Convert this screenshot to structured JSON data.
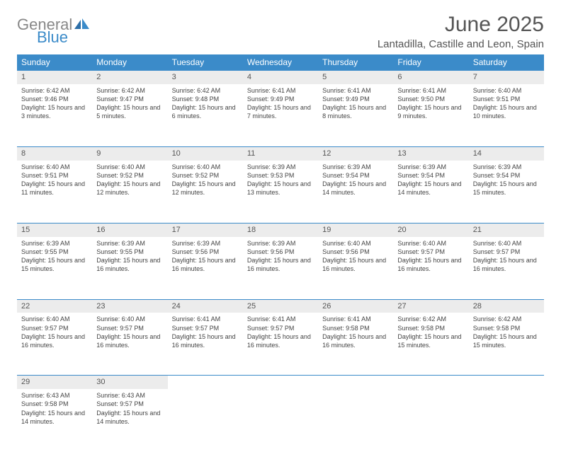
{
  "logo": {
    "textGray": "General",
    "textBlue": "Blue"
  },
  "header": {
    "monthTitle": "June 2025",
    "location": "Lantadilla, Castille and Leon, Spain"
  },
  "colors": {
    "headerBar": "#3b8bc9",
    "dayStrip": "#ececec",
    "textGray": "#888888",
    "textBlue": "#3b8bc9"
  },
  "weekdays": [
    "Sunday",
    "Monday",
    "Tuesday",
    "Wednesday",
    "Thursday",
    "Friday",
    "Saturday"
  ],
  "days": [
    {
      "n": 1,
      "sr": "6:42 AM",
      "ss": "9:46 PM",
      "dl": "15 hours and 3 minutes."
    },
    {
      "n": 2,
      "sr": "6:42 AM",
      "ss": "9:47 PM",
      "dl": "15 hours and 5 minutes."
    },
    {
      "n": 3,
      "sr": "6:42 AM",
      "ss": "9:48 PM",
      "dl": "15 hours and 6 minutes."
    },
    {
      "n": 4,
      "sr": "6:41 AM",
      "ss": "9:49 PM",
      "dl": "15 hours and 7 minutes."
    },
    {
      "n": 5,
      "sr": "6:41 AM",
      "ss": "9:49 PM",
      "dl": "15 hours and 8 minutes."
    },
    {
      "n": 6,
      "sr": "6:41 AM",
      "ss": "9:50 PM",
      "dl": "15 hours and 9 minutes."
    },
    {
      "n": 7,
      "sr": "6:40 AM",
      "ss": "9:51 PM",
      "dl": "15 hours and 10 minutes."
    },
    {
      "n": 8,
      "sr": "6:40 AM",
      "ss": "9:51 PM",
      "dl": "15 hours and 11 minutes."
    },
    {
      "n": 9,
      "sr": "6:40 AM",
      "ss": "9:52 PM",
      "dl": "15 hours and 12 minutes."
    },
    {
      "n": 10,
      "sr": "6:40 AM",
      "ss": "9:52 PM",
      "dl": "15 hours and 12 minutes."
    },
    {
      "n": 11,
      "sr": "6:39 AM",
      "ss": "9:53 PM",
      "dl": "15 hours and 13 minutes."
    },
    {
      "n": 12,
      "sr": "6:39 AM",
      "ss": "9:54 PM",
      "dl": "15 hours and 14 minutes."
    },
    {
      "n": 13,
      "sr": "6:39 AM",
      "ss": "9:54 PM",
      "dl": "15 hours and 14 minutes."
    },
    {
      "n": 14,
      "sr": "6:39 AM",
      "ss": "9:54 PM",
      "dl": "15 hours and 15 minutes."
    },
    {
      "n": 15,
      "sr": "6:39 AM",
      "ss": "9:55 PM",
      "dl": "15 hours and 15 minutes."
    },
    {
      "n": 16,
      "sr": "6:39 AM",
      "ss": "9:55 PM",
      "dl": "15 hours and 16 minutes."
    },
    {
      "n": 17,
      "sr": "6:39 AM",
      "ss": "9:56 PM",
      "dl": "15 hours and 16 minutes."
    },
    {
      "n": 18,
      "sr": "6:39 AM",
      "ss": "9:56 PM",
      "dl": "15 hours and 16 minutes."
    },
    {
      "n": 19,
      "sr": "6:40 AM",
      "ss": "9:56 PM",
      "dl": "15 hours and 16 minutes."
    },
    {
      "n": 20,
      "sr": "6:40 AM",
      "ss": "9:57 PM",
      "dl": "15 hours and 16 minutes."
    },
    {
      "n": 21,
      "sr": "6:40 AM",
      "ss": "9:57 PM",
      "dl": "15 hours and 16 minutes."
    },
    {
      "n": 22,
      "sr": "6:40 AM",
      "ss": "9:57 PM",
      "dl": "15 hours and 16 minutes."
    },
    {
      "n": 23,
      "sr": "6:40 AM",
      "ss": "9:57 PM",
      "dl": "15 hours and 16 minutes."
    },
    {
      "n": 24,
      "sr": "6:41 AM",
      "ss": "9:57 PM",
      "dl": "15 hours and 16 minutes."
    },
    {
      "n": 25,
      "sr": "6:41 AM",
      "ss": "9:57 PM",
      "dl": "15 hours and 16 minutes."
    },
    {
      "n": 26,
      "sr": "6:41 AM",
      "ss": "9:58 PM",
      "dl": "15 hours and 16 minutes."
    },
    {
      "n": 27,
      "sr": "6:42 AM",
      "ss": "9:58 PM",
      "dl": "15 hours and 15 minutes."
    },
    {
      "n": 28,
      "sr": "6:42 AM",
      "ss": "9:58 PM",
      "dl": "15 hours and 15 minutes."
    },
    {
      "n": 29,
      "sr": "6:43 AM",
      "ss": "9:58 PM",
      "dl": "15 hours and 14 minutes."
    },
    {
      "n": 30,
      "sr": "6:43 AM",
      "ss": "9:57 PM",
      "dl": "15 hours and 14 minutes."
    }
  ],
  "labels": {
    "sunrise": "Sunrise:",
    "sunset": "Sunset:",
    "daylight": "Daylight:"
  },
  "layout": {
    "firstDayColumn": 0,
    "totalDays": 30,
    "columns": 7
  }
}
